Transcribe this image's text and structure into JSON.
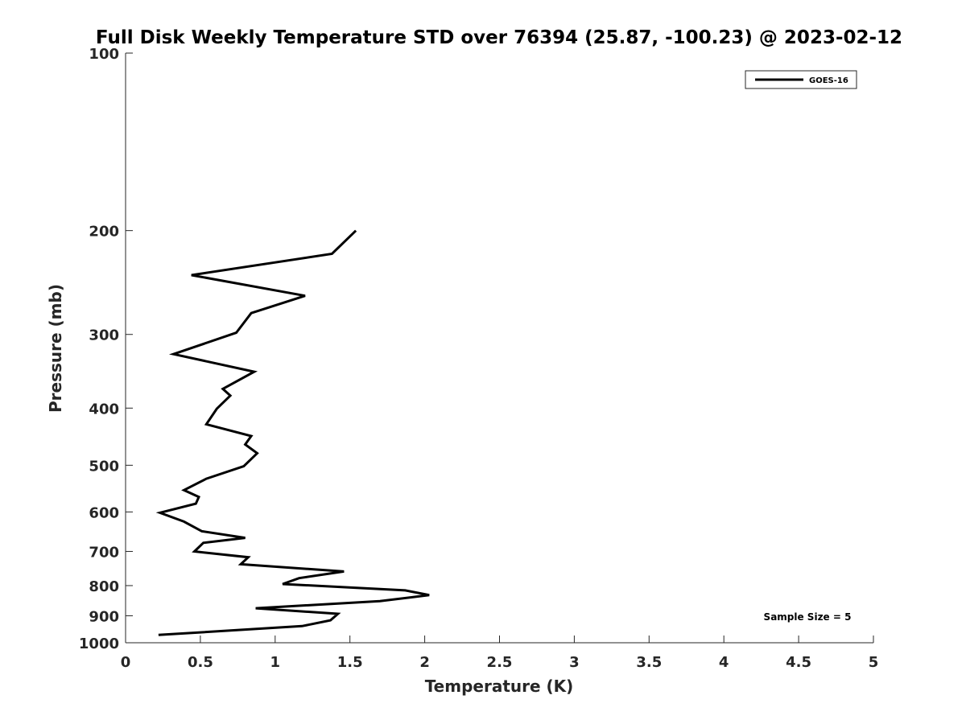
{
  "chart_data": {
    "type": "line",
    "title": "Full Disk Weekly Temperature STD over 76394 (25.87, -100.23) @ 2023-02-12",
    "xlabel": "Temperature (K)",
    "ylabel": "Pressure (mb)",
    "xlim": [
      0,
      5
    ],
    "ylim": [
      100,
      1000
    ],
    "y_scale": "log",
    "y_reversed": true,
    "grid": false,
    "legend_position": "top-right",
    "x_ticks": [
      "0",
      "0.5",
      "1",
      "1.5",
      "2",
      "2.5",
      "3",
      "3.5",
      "4",
      "4.5",
      "5"
    ],
    "y_ticks": [
      "100",
      "200",
      "300",
      "400",
      "500",
      "600",
      "700",
      "800",
      "900",
      "1000"
    ],
    "series": [
      {
        "name": "GOES-16",
        "color": "#000000",
        "points": [
          {
            "x": 1.54,
            "y": 200
          },
          {
            "x": 1.38,
            "y": 219
          },
          {
            "x": 0.44,
            "y": 238
          },
          {
            "x": 1.2,
            "y": 258
          },
          {
            "x": 0.84,
            "y": 276
          },
          {
            "x": 0.74,
            "y": 298
          },
          {
            "x": 0.32,
            "y": 324
          },
          {
            "x": 0.86,
            "y": 347
          },
          {
            "x": 0.65,
            "y": 371
          },
          {
            "x": 0.7,
            "y": 381
          },
          {
            "x": 0.61,
            "y": 401
          },
          {
            "x": 0.54,
            "y": 426
          },
          {
            "x": 0.84,
            "y": 446
          },
          {
            "x": 0.8,
            "y": 461
          },
          {
            "x": 0.88,
            "y": 477
          },
          {
            "x": 0.79,
            "y": 502
          },
          {
            "x": 0.54,
            "y": 527
          },
          {
            "x": 0.39,
            "y": 551
          },
          {
            "x": 0.49,
            "y": 566
          },
          {
            "x": 0.47,
            "y": 581
          },
          {
            "x": 0.23,
            "y": 602
          },
          {
            "x": 0.39,
            "y": 623
          },
          {
            "x": 0.51,
            "y": 647
          },
          {
            "x": 0.8,
            "y": 664
          },
          {
            "x": 0.52,
            "y": 677
          },
          {
            "x": 0.46,
            "y": 700
          },
          {
            "x": 0.82,
            "y": 716
          },
          {
            "x": 0.77,
            "y": 736
          },
          {
            "x": 1.46,
            "y": 757
          },
          {
            "x": 1.16,
            "y": 777
          },
          {
            "x": 1.05,
            "y": 795
          },
          {
            "x": 1.87,
            "y": 815
          },
          {
            "x": 2.03,
            "y": 830
          },
          {
            "x": 1.7,
            "y": 850
          },
          {
            "x": 0.87,
            "y": 874
          },
          {
            "x": 1.42,
            "y": 893
          },
          {
            "x": 1.37,
            "y": 916
          },
          {
            "x": 1.18,
            "y": 937
          },
          {
            "x": 0.22,
            "y": 970
          }
        ]
      }
    ],
    "annotations": [
      "Sample Size = 5"
    ]
  }
}
